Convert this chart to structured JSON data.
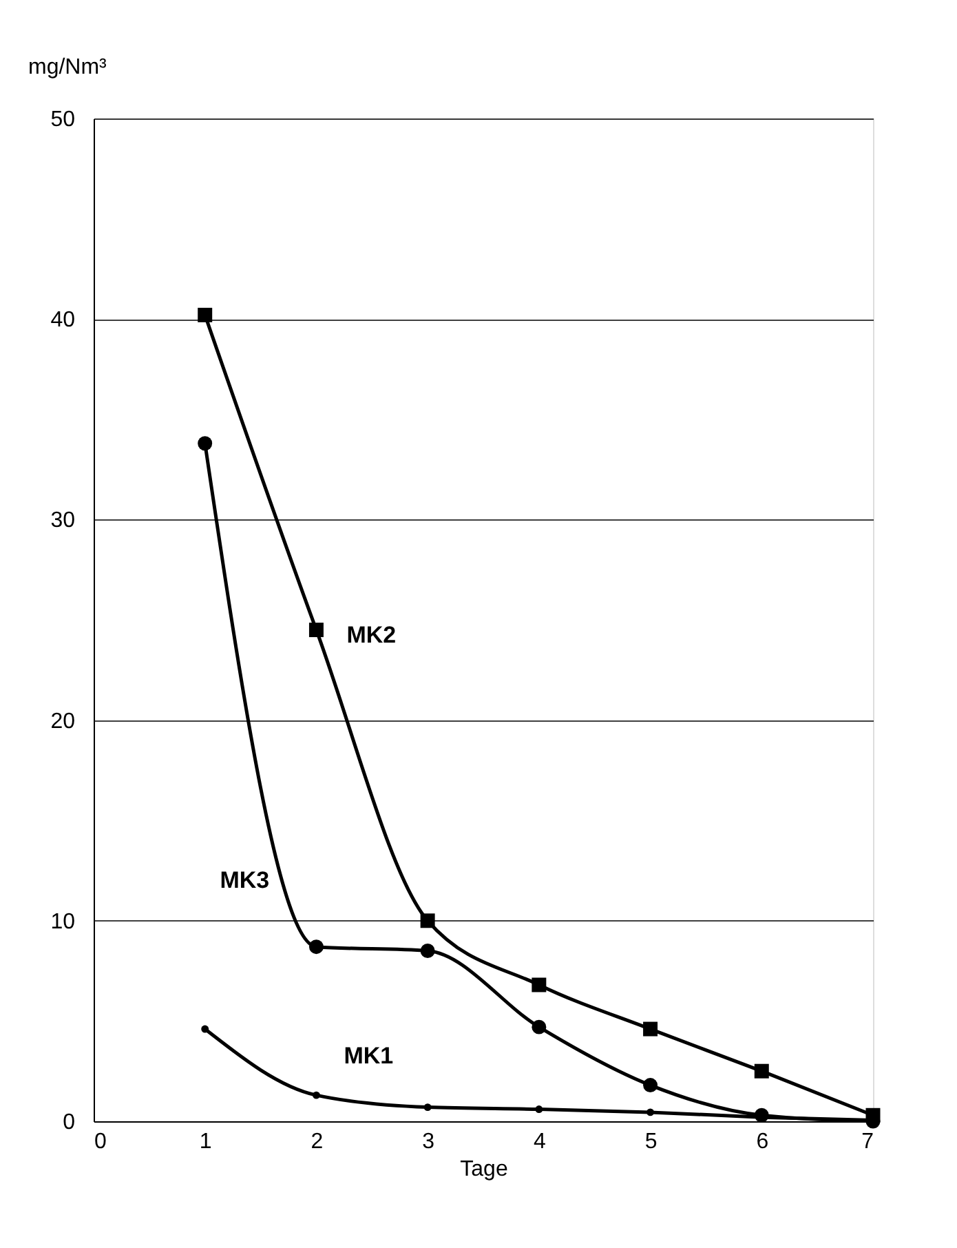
{
  "chart_data": {
    "type": "line",
    "xlabel": "Tage",
    "ylabel": "mg/Nm³",
    "x": [
      1,
      2,
      3,
      4,
      5,
      6,
      7
    ],
    "series": [
      {
        "name": "MK1",
        "color": "#000000",
        "marker": "circle",
        "values": [
          4.6,
          1.3,
          0.7,
          0.6,
          0.45,
          0.2,
          0.05
        ]
      },
      {
        "name": "MK2",
        "color": "#000000",
        "marker": "square",
        "values": [
          40.2,
          24.5,
          10.0,
          6.8,
          4.6,
          2.5,
          0.3
        ]
      },
      {
        "name": "MK3",
        "color": "#000000",
        "marker": "circle",
        "values": [
          33.8,
          8.7,
          8.5,
          4.7,
          1.8,
          0.3,
          0.0
        ]
      }
    ],
    "xlim": [
      0,
      7
    ],
    "xticks": [
      0,
      1,
      2,
      3,
      4,
      5,
      6,
      7
    ],
    "ylim": [
      0,
      50
    ],
    "yticks": [
      0,
      10,
      20,
      30,
      40,
      50
    ],
    "grid": "y",
    "line_style": "solid"
  }
}
